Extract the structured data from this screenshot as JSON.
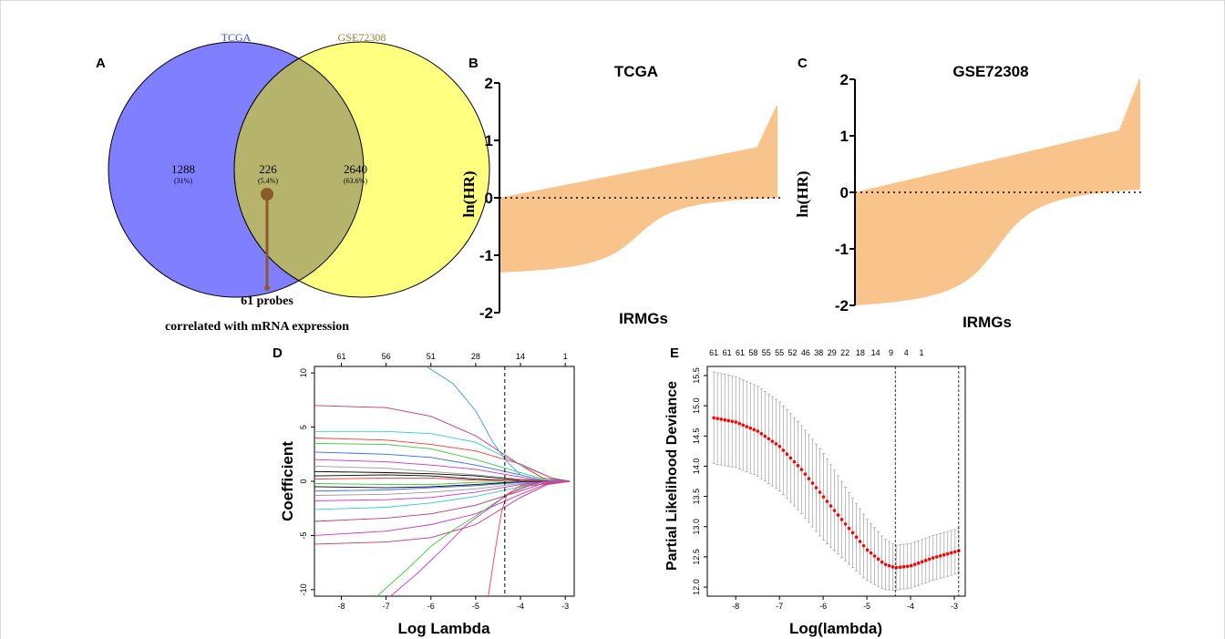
{
  "panels": {
    "A": "A",
    "B": "B",
    "C": "C",
    "D": "D",
    "E": "E"
  },
  "colors": {
    "tcga": "#7f7fff",
    "gse": "#ffff80",
    "overlap": "#b5b36c",
    "tcga_label": "#3d3dff",
    "gse_label": "#8a8a30",
    "hr_bars": "#f8c48c",
    "probe_marker": "#8b5a2b",
    "cv_points": "#ff0000"
  },
  "chart_data": [
    {
      "id": "A",
      "type": "venn",
      "sets": [
        {
          "name": "TCGA",
          "only": "1288",
          "only_pct": "(31%)"
        },
        {
          "name": "GSE72308",
          "only": "2640",
          "only_pct": "(63.6%)"
        }
      ],
      "overlap": {
        "value": "226",
        "pct": "(5.4%)"
      },
      "annotation": {
        "line1": "61 probes",
        "line2": "correlated with mRNA expression"
      }
    },
    {
      "id": "B",
      "type": "area",
      "title": "TCGA",
      "xlabel": "IRMGs",
      "ylabel": "ln(HR)",
      "ylim": [
        -2,
        2
      ],
      "yticks": [
        "2",
        "1",
        "0",
        "-1",
        "-2"
      ],
      "n_points": 226,
      "lower_start": -1.3,
      "lower_end": 0.0,
      "upper_start": 0.0,
      "upper_end": 1.6,
      "reference_line": 0
    },
    {
      "id": "C",
      "type": "area",
      "title": "GSE72308",
      "xlabel": "IRMGs",
      "ylabel": "ln(HR)",
      "ylim": [
        -2,
        2
      ],
      "yticks": [
        "2",
        "1",
        "0",
        "-1",
        "-2"
      ],
      "n_points": 226,
      "lower_start": -2.0,
      "lower_end": 0.05,
      "upper_start": 0.0,
      "upper_end": 2.0,
      "reference_line": 0
    },
    {
      "id": "D",
      "type": "line",
      "xlabel": "Log Lambda",
      "ylabel": "Coefficient",
      "xlim": [
        -8.6,
        -2.8
      ],
      "ylim": [
        -10.6,
        10.6
      ],
      "xticks": [
        "-8",
        "-7",
        "-6",
        "-5",
        "-4",
        "-3"
      ],
      "yticks": [
        "10",
        "5",
        "0",
        "-5",
        "-10"
      ],
      "top_ticks": [
        "61",
        "56",
        "51",
        "28",
        "14",
        "1"
      ],
      "top_tick_x": [
        -8.0,
        -7.0,
        -6.0,
        -5.0,
        -4.0,
        -3.0
      ],
      "lambda_min_line": -4.35,
      "series": [
        {
          "values": [
            [
              -8.6,
              7.0
            ],
            [
              -7,
              6.8
            ],
            [
              -6,
              6.0
            ],
            [
              -5,
              4.2
            ],
            [
              -4,
              1.5
            ],
            [
              -3.5,
              0.3
            ],
            [
              -2.9,
              0
            ]
          ],
          "color": "#cc3366"
        },
        {
          "values": [
            [
              -8.6,
              4.6
            ],
            [
              -7,
              4.6
            ],
            [
              -6,
              4.4
            ],
            [
              -5,
              3.6
            ],
            [
              -4,
              1.5
            ],
            [
              -3.3,
              0.3
            ],
            [
              -2.9,
              0
            ]
          ],
          "color": "#33cccc"
        },
        {
          "values": [
            [
              -8.6,
              4.0
            ],
            [
              -7,
              3.8
            ],
            [
              -6,
              3.4
            ],
            [
              -5,
              2.8
            ],
            [
              -4,
              1.6
            ],
            [
              -3.3,
              0.3
            ],
            [
              -2.9,
              0
            ]
          ],
          "color": "#ff3333"
        },
        {
          "values": [
            [
              -8.6,
              3.5
            ],
            [
              -7,
              3.4
            ],
            [
              -6,
              3.0
            ],
            [
              -5,
              2.0
            ],
            [
              -4,
              0.8
            ],
            [
              -3.4,
              0.1
            ],
            [
              -2.9,
              0
            ]
          ],
          "color": "#33cc33"
        },
        {
          "values": [
            [
              -8.6,
              2.7
            ],
            [
              -7,
              2.5
            ],
            [
              -6,
              2.2
            ],
            [
              -5,
              1.5
            ],
            [
              -4,
              0.6
            ],
            [
              -3.5,
              0.1
            ],
            [
              -2.9,
              0
            ]
          ],
          "color": "#3366ff"
        },
        {
          "values": [
            [
              -8.6,
              2.0
            ],
            [
              -7,
              1.8
            ],
            [
              -6,
              1.5
            ],
            [
              -5,
              1.1
            ],
            [
              -4,
              0.4
            ],
            [
              -3.5,
              0.05
            ],
            [
              -2.9,
              0
            ]
          ],
          "color": "#cc33cc"
        },
        {
          "values": [
            [
              -8.6,
              1.4
            ],
            [
              -7,
              1.2
            ],
            [
              -6,
              0.9
            ],
            [
              -5,
              0.6
            ],
            [
              -4,
              0.2
            ],
            [
              -2.9,
              0
            ]
          ],
          "color": "#999999"
        },
        {
          "values": [
            [
              -8.6,
              0.9
            ],
            [
              -7,
              0.8
            ],
            [
              -6,
              0.7
            ],
            [
              -5,
              0.5
            ],
            [
              -4,
              0.1
            ],
            [
              -2.9,
              0
            ]
          ],
          "color": "#000000"
        },
        {
          "values": [
            [
              -8.6,
              0.5
            ],
            [
              -7,
              0.6
            ],
            [
              -6,
              0.5
            ],
            [
              -5,
              0.2
            ],
            [
              -4,
              0.05
            ],
            [
              -2.9,
              0
            ]
          ],
          "color": "#000000"
        },
        {
          "values": [
            [
              -8.6,
              0.2
            ],
            [
              -7,
              0.3
            ],
            [
              -6,
              0.3
            ],
            [
              -5,
              0.1
            ],
            [
              -2.9,
              0
            ]
          ],
          "color": "#ff3333"
        },
        {
          "values": [
            [
              -8.6,
              -0.2
            ],
            [
              -7,
              -0.3
            ],
            [
              -6,
              -0.3
            ],
            [
              -5,
              -0.1
            ],
            [
              -2.9,
              0
            ]
          ],
          "color": "#33cc33"
        },
        {
          "values": [
            [
              -8.6,
              -0.5
            ],
            [
              -7,
              -0.6
            ],
            [
              -6,
              -0.5
            ],
            [
              -5,
              -0.3
            ],
            [
              -4,
              -0.05
            ],
            [
              -2.9,
              0
            ]
          ],
          "color": "#000000"
        },
        {
          "values": [
            [
              -8.6,
              -0.9
            ],
            [
              -7,
              -0.8
            ],
            [
              -6,
              -0.6
            ],
            [
              -5,
              -0.4
            ],
            [
              -4,
              -0.1
            ],
            [
              -2.9,
              0
            ]
          ],
          "color": "#3366ff"
        },
        {
          "values": [
            [
              -8.6,
              -1.3
            ],
            [
              -7,
              -1.2
            ],
            [
              -6,
              -1.0
            ],
            [
              -5,
              -0.7
            ],
            [
              -4,
              -0.2
            ],
            [
              -2.9,
              0
            ]
          ],
          "color": "#999999"
        },
        {
          "values": [
            [
              -8.6,
              -1.8
            ],
            [
              -7,
              -1.7
            ],
            [
              -6,
              -1.5
            ],
            [
              -5,
              -1.0
            ],
            [
              -4,
              -0.3
            ],
            [
              -3.5,
              -0.05
            ],
            [
              -2.9,
              0
            ]
          ],
          "color": "#cc33cc"
        },
        {
          "values": [
            [
              -8.6,
              -2.6
            ],
            [
              -7,
              -2.4
            ],
            [
              -6,
              -2.0
            ],
            [
              -5,
              -1.4
            ],
            [
              -4,
              -0.5
            ],
            [
              -3.5,
              -0.1
            ],
            [
              -2.9,
              0
            ]
          ],
          "color": "#33cccc"
        },
        {
          "values": [
            [
              -8.6,
              -3.7
            ],
            [
              -7,
              -3.4
            ],
            [
              -6,
              -3.0
            ],
            [
              -5,
              -2.2
            ],
            [
              -4,
              -0.9
            ],
            [
              -3.5,
              -0.2
            ],
            [
              -2.9,
              0
            ]
          ],
          "color": "#cc3366"
        },
        {
          "values": [
            [
              -8.6,
              -5.0
            ],
            [
              -7,
              -4.6
            ],
            [
              -6,
              -4.0
            ],
            [
              -5,
              -3.0
            ],
            [
              -4,
              -1.2
            ],
            [
              -3.4,
              -0.2
            ],
            [
              -2.9,
              0
            ]
          ],
          "color": "#cc33cc"
        },
        {
          "values": [
            [
              -8.6,
              -5.8
            ],
            [
              -7,
              -5.6
            ],
            [
              -6,
              -5.2
            ],
            [
              -5,
              -4.0
            ],
            [
              -4,
              -1.5
            ],
            [
              -3.4,
              -0.3
            ],
            [
              -2.9,
              0
            ]
          ],
          "color": "#cc3366"
        },
        {
          "values": [
            [
              -6.1,
              10.6
            ],
            [
              -5.5,
              9.0
            ],
            [
              -5,
              6.5
            ],
            [
              -4.6,
              3.5
            ],
            [
              -4.3,
              1.8
            ],
            [
              -4,
              0.6
            ],
            [
              -3.5,
              0.1
            ],
            [
              -2.9,
              0
            ]
          ],
          "color": "#3399ff"
        },
        {
          "values": [
            [
              -7.2,
              -10.6
            ],
            [
              -6.5,
              -8.0
            ],
            [
              -6,
              -6.0
            ],
            [
              -5.5,
              -4.5
            ],
            [
              -5,
              -3.2
            ],
            [
              -4.5,
              -1.8
            ],
            [
              -4,
              -0.6
            ],
            [
              -3.5,
              -0.1
            ],
            [
              -2.9,
              0
            ]
          ],
          "color": "#33cc33"
        },
        {
          "values": [
            [
              -6.9,
              -10.6
            ],
            [
              -6.3,
              -8.5
            ],
            [
              -5.8,
              -6.5
            ],
            [
              -5.2,
              -4.0
            ],
            [
              -4.7,
              -2.5
            ],
            [
              -4.3,
              -1.2
            ],
            [
              -3.8,
              -0.4
            ],
            [
              -2.9,
              0
            ]
          ],
          "color": "#cc33cc"
        },
        {
          "values": [
            [
              -4.72,
              -10.6
            ],
            [
              -4.55,
              -6.0
            ],
            [
              -4.42,
              -2.8
            ],
            [
              -4.3,
              -1.2
            ],
            [
              -4.0,
              -0.4
            ],
            [
              -3.5,
              -0.1
            ],
            [
              -2.9,
              0
            ]
          ],
          "color": "#ff3366"
        }
      ]
    },
    {
      "id": "E",
      "type": "scatter",
      "xlabel": "Log(lambda)",
      "ylabel": "Partial Likelihood Deviance",
      "xlim": [
        -8.65,
        -2.75
      ],
      "ylim": [
        11.85,
        15.65
      ],
      "xticks": [
        "-8",
        "-7",
        "-6",
        "-5",
        "-4",
        "-3"
      ],
      "yticks": [
        "12.0",
        "12.5",
        "13.0",
        "13.5",
        "14.0",
        "14.5",
        "15.0",
        "15.5"
      ],
      "top_ticks": [
        "61",
        "61",
        "61",
        "58",
        "55",
        "55",
        "52",
        "46",
        "38",
        "29",
        "22",
        "18",
        "14",
        "9",
        "4",
        "1"
      ],
      "top_tick_x": [
        -8.5,
        -8.2,
        -7.9,
        -7.6,
        -7.3,
        -7.0,
        -6.7,
        -6.4,
        -6.1,
        -5.8,
        -5.5,
        -5.15,
        -4.8,
        -4.45,
        -4.1,
        -3.75
      ],
      "lambda_min": -4.35,
      "lambda_1se": -2.9,
      "x_start": -8.5,
      "x_end": -2.9,
      "n_points": 68,
      "curve_knots": [
        [
          -8.5,
          14.8
        ],
        [
          -8.0,
          14.73
        ],
        [
          -7.5,
          14.58
        ],
        [
          -7.0,
          14.33
        ],
        [
          -6.5,
          13.95
        ],
        [
          -6.0,
          13.5
        ],
        [
          -5.5,
          13.05
        ],
        [
          -5.0,
          12.62
        ],
        [
          -4.6,
          12.38
        ],
        [
          -4.35,
          12.32
        ],
        [
          -4.0,
          12.35
        ],
        [
          -3.5,
          12.48
        ],
        [
          -2.9,
          12.6
        ]
      ],
      "error_knots": [
        [
          -8.5,
          0.76
        ],
        [
          -6.0,
          0.72
        ],
        [
          -4.35,
          0.37
        ],
        [
          -2.9,
          0.37
        ]
      ]
    }
  ]
}
